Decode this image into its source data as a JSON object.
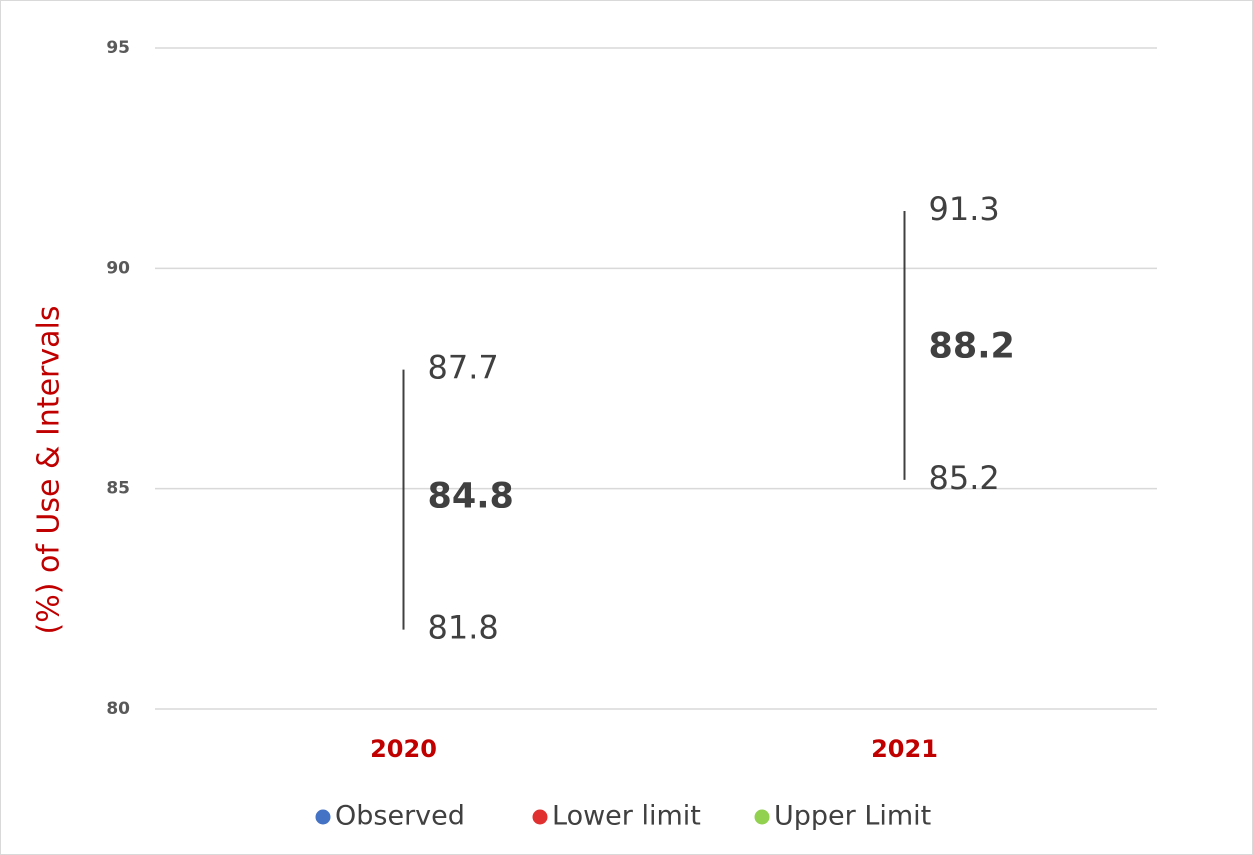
{
  "chart_data": {
    "type": "hilo",
    "y_label": "(%) of Use & Intervals",
    "categories": [
      "2020",
      "2021"
    ],
    "series": [
      {
        "name": "Observed",
        "color": "#4472c4",
        "values": [
          84.8,
          88.2
        ]
      },
      {
        "name": "Lower limit",
        "color": "#e03030",
        "values": [
          81.8,
          85.2
        ]
      },
      {
        "name": "Upper Limit",
        "color": "#92d050",
        "values": [
          87.7,
          91.3
        ]
      }
    ],
    "ylim": [
      80,
      95
    ],
    "yticks": [
      80,
      85,
      90,
      95
    ],
    "grid": true,
    "legend": "bottom"
  }
}
